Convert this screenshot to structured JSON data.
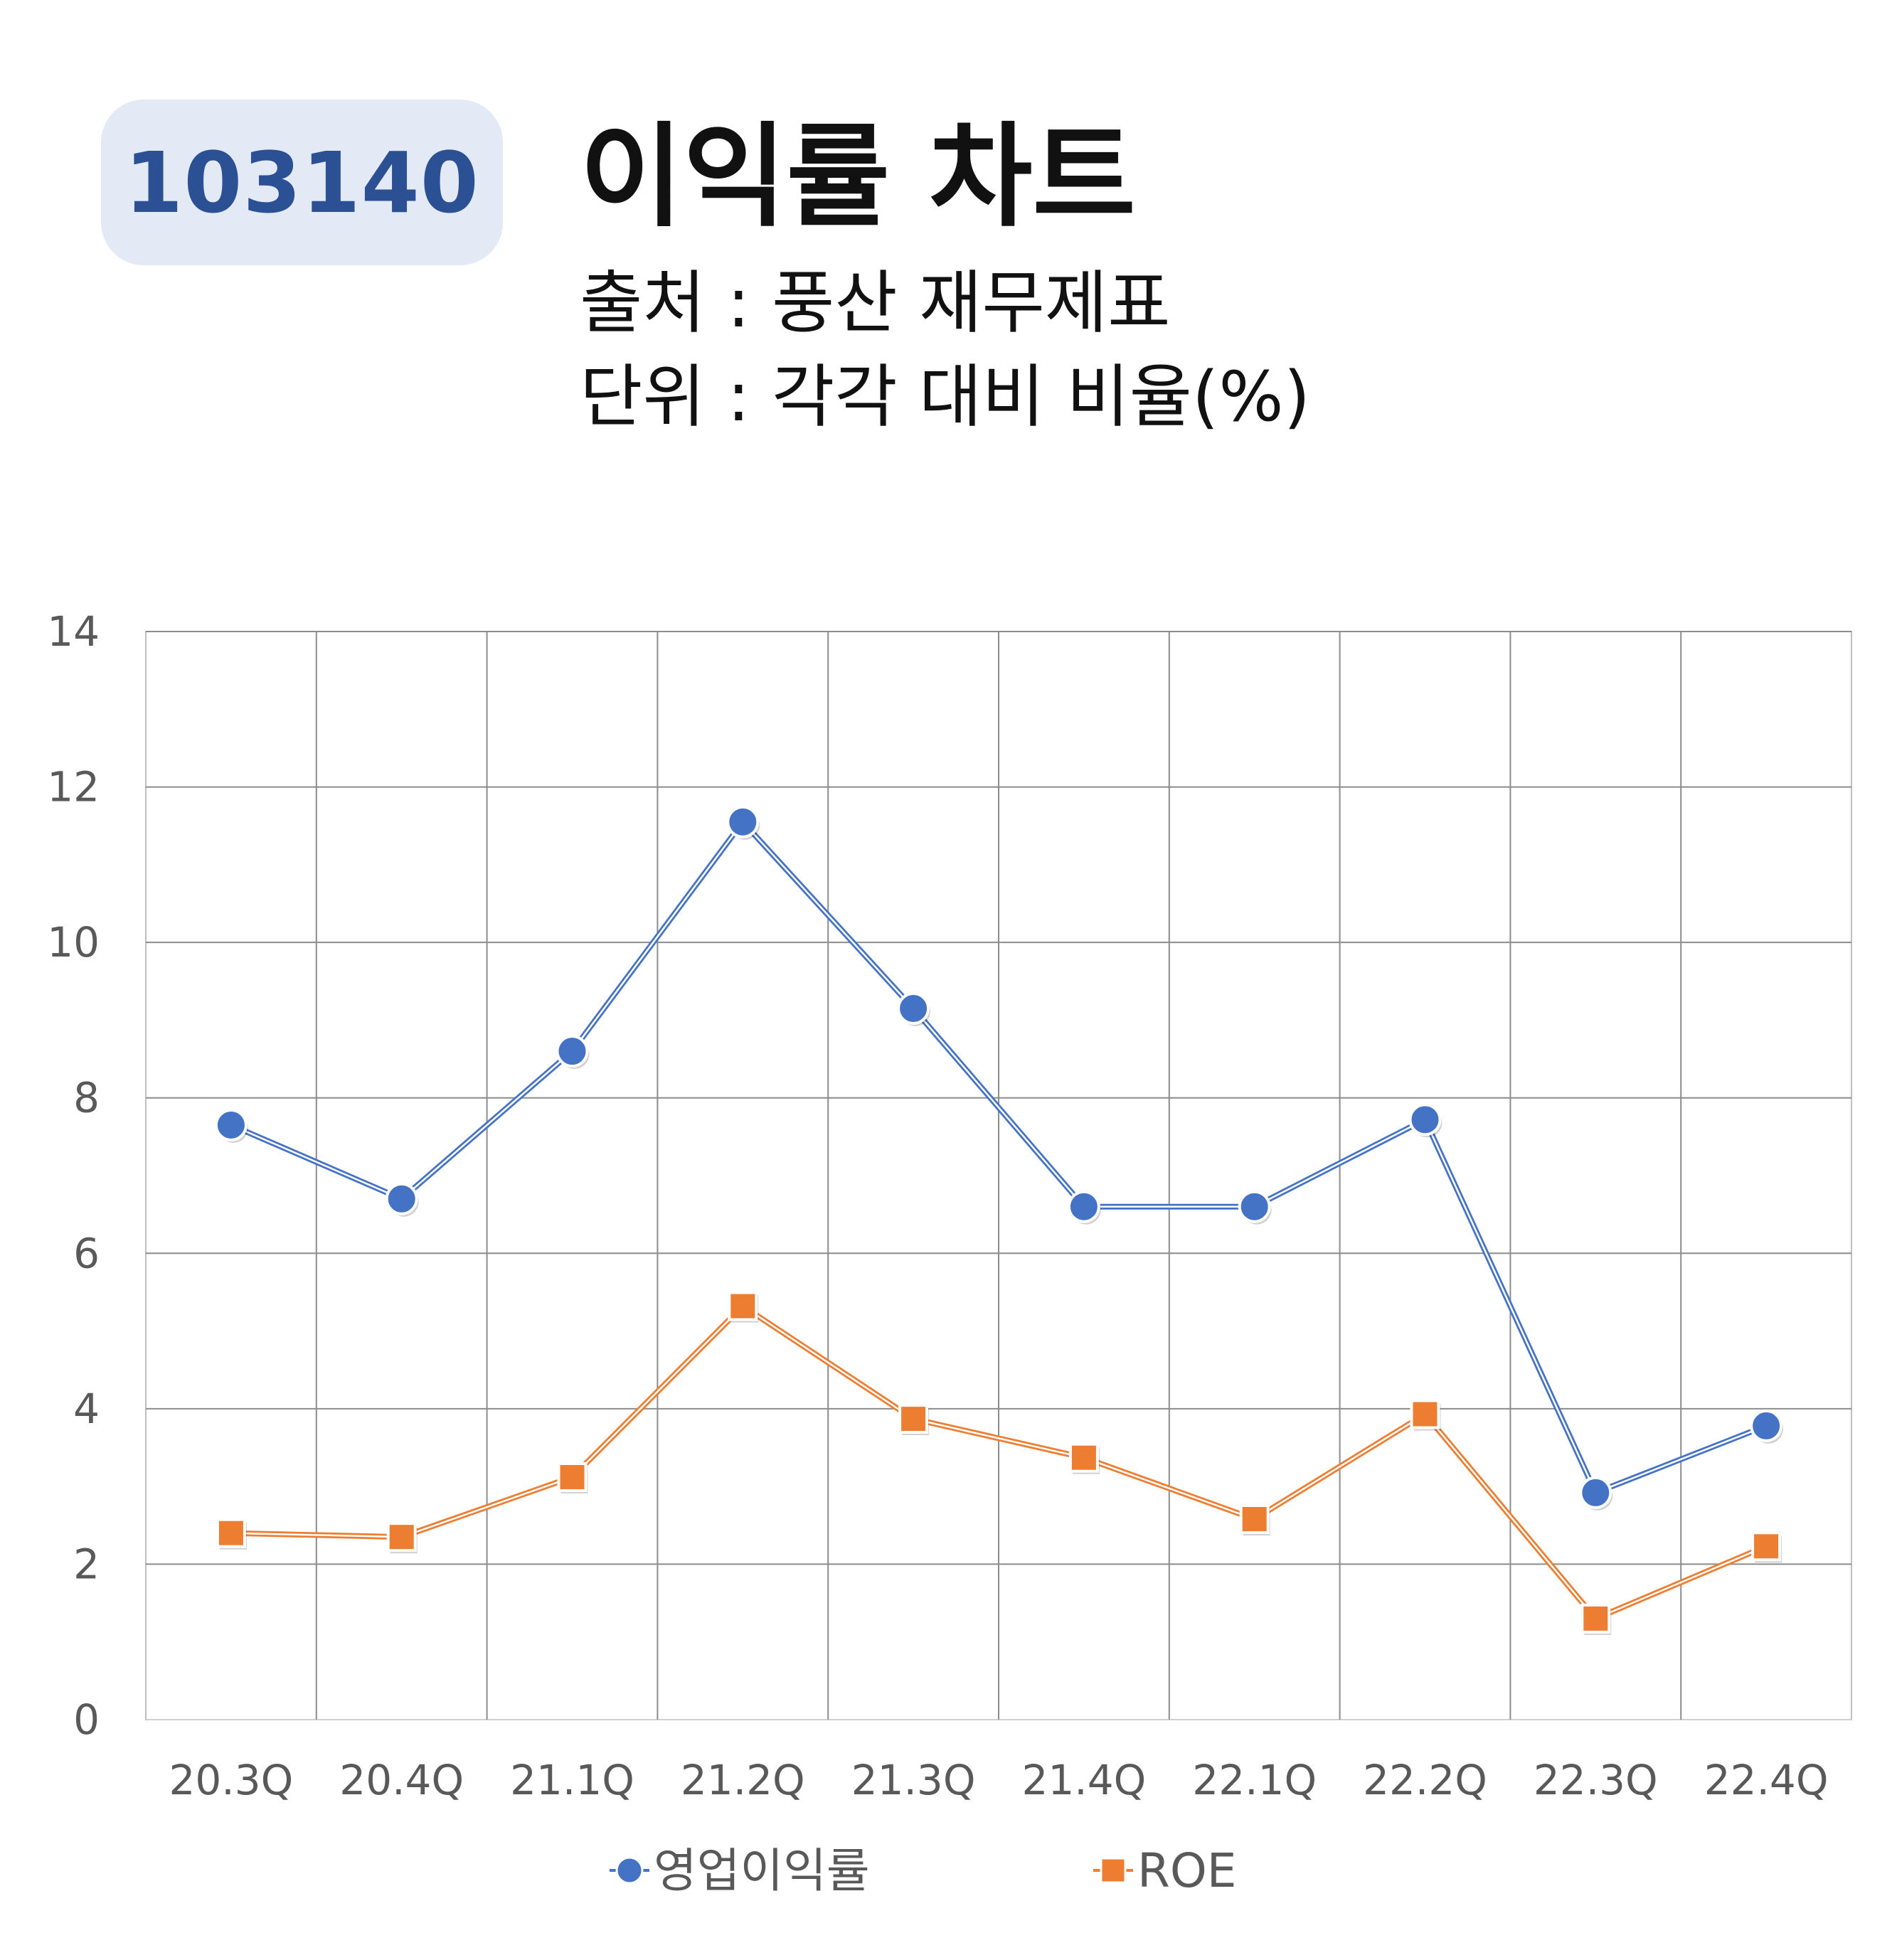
{
  "header": {
    "code": "103140",
    "title": "이익률 차트",
    "source": "출처 : 풍산 재무제표",
    "unit": "단위 : 각각 대비 비율(%)"
  },
  "colors": {
    "badge_bg": "#e3e9f5",
    "badge_text": "#2b5093",
    "series_1": "#4472c4",
    "series_2": "#ed7d31",
    "grid": "#8c8c8c"
  },
  "chart_data": {
    "type": "line",
    "categories": [
      "20.3Q",
      "20.4Q",
      "21.1Q",
      "21.2Q",
      "21.3Q",
      "21.4Q",
      "22.1Q",
      "22.2Q",
      "22.3Q",
      "22.4Q"
    ],
    "series": [
      {
        "name": "영업이익률",
        "marker": "circle",
        "color": "#4472c4",
        "values": [
          7.65,
          6.7,
          8.6,
          11.55,
          9.15,
          6.6,
          6.6,
          7.72,
          2.92,
          3.78
        ]
      },
      {
        "name": "ROE",
        "marker": "square",
        "color": "#ed7d31",
        "values": [
          2.4,
          2.35,
          3.12,
          5.32,
          3.87,
          3.37,
          2.58,
          3.93,
          1.3,
          2.23
        ]
      }
    ],
    "ylim": [
      0,
      14
    ],
    "yticks": [
      0,
      2,
      4,
      6,
      8,
      10,
      12,
      14
    ],
    "grid": true,
    "legend": "bottom"
  }
}
